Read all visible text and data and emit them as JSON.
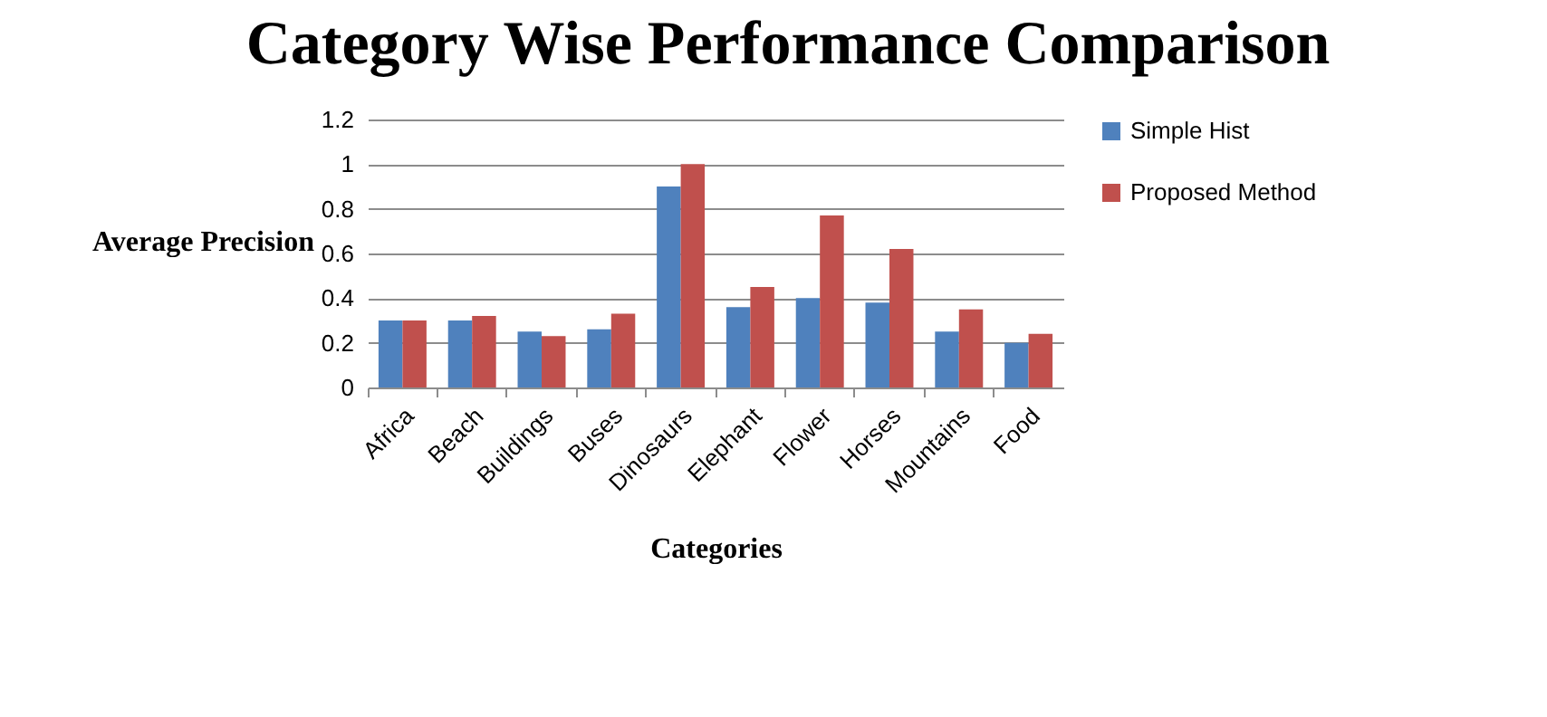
{
  "chart_data": {
    "type": "bar",
    "title": "Category Wise Performance Comparison",
    "xlabel": "Categories",
    "ylabel": "Average Precision",
    "categories": [
      "Africa",
      "Beach",
      "Buildings",
      "Buses",
      "Dinosaurs",
      "Elephant",
      "Flower",
      "Horses",
      "Mountains",
      "Food"
    ],
    "series": [
      {
        "name": "Simple Hist",
        "color": "#4f81bd",
        "values": [
          0.3,
          0.3,
          0.25,
          0.26,
          0.9,
          0.36,
          0.4,
          0.38,
          0.25,
          0.2
        ]
      },
      {
        "name": "Proposed Method",
        "color": "#c0504d",
        "values": [
          0.3,
          0.32,
          0.23,
          0.33,
          1.0,
          0.45,
          0.77,
          0.62,
          0.35,
          0.24
        ]
      }
    ],
    "ylim": [
      0,
      1.2
    ],
    "yticks": [
      0,
      0.2,
      0.4,
      0.6,
      0.8,
      1,
      1.2
    ],
    "grid": "y",
    "legend": "right"
  }
}
